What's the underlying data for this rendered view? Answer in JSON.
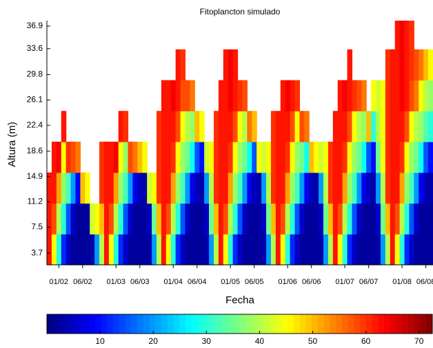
{
  "chart_data": {
    "type": "heatmap",
    "title": "Fitoplancton simulado",
    "xlabel": "Fecha",
    "ylabel": "Altura (m)",
    "categories": [
      null,
      null,
      "01/02",
      null,
      null,
      null,
      null,
      "06/02",
      null,
      null,
      null,
      null,
      null,
      null,
      "01/03",
      null,
      null,
      null,
      null,
      "06/03",
      null,
      null,
      null,
      null,
      null,
      null,
      "01/04",
      null,
      null,
      null,
      null,
      "06/04",
      null,
      null,
      null,
      null,
      null,
      null,
      "01/05",
      null,
      null,
      null,
      null,
      "06/05",
      null,
      null,
      null,
      null,
      null,
      null,
      "01/06",
      null,
      null,
      null,
      null,
      "06/06",
      null,
      null,
      null,
      null,
      null,
      null,
      "01/07",
      null,
      null,
      null,
      null,
      "06/07",
      null,
      null,
      null,
      null,
      null,
      null,
      "01/08",
      null,
      null,
      null,
      null,
      "06/08",
      null
    ],
    "ybins": [
      2,
      6.5,
      11,
      15.5,
      20,
      24.5,
      29,
      33.5,
      37.7
    ],
    "z": [
      [
        62,
        62,
        62
      ],
      [
        45,
        58,
        62,
        62
      ],
      [
        30,
        40,
        52,
        64
      ],
      [
        12,
        30,
        38,
        45,
        62
      ],
      [
        5,
        15,
        32,
        60
      ],
      [
        2,
        5,
        20,
        58
      ],
      [
        2,
        2,
        8,
        55
      ],
      [
        2,
        2,
        50
      ],
      [
        2,
        2,
        45
      ],
      [
        3,
        42
      ],
      [
        20,
        45
      ],
      [
        40,
        50,
        60,
        60
      ],
      [
        62,
        62,
        62,
        62
      ],
      [
        45,
        58,
        62,
        62
      ],
      [
        30,
        40,
        52,
        64
      ],
      [
        12,
        30,
        38,
        45,
        62
      ],
      [
        5,
        15,
        32,
        38,
        60
      ],
      [
        2,
        5,
        20,
        58
      ],
      [
        2,
        2,
        8,
        55
      ],
      [
        2,
        2,
        4,
        50
      ],
      [
        2,
        2,
        3,
        45
      ],
      [
        3,
        5,
        42
      ],
      [
        20,
        35,
        45
      ],
      [
        40,
        50,
        60,
        60,
        60
      ],
      [
        62,
        62,
        62,
        62,
        62,
        62
      ],
      [
        45,
        58,
        62,
        62,
        62,
        62
      ],
      [
        30,
        40,
        52,
        60,
        62,
        64
      ],
      [
        12,
        30,
        38,
        45,
        58,
        62,
        62
      ],
      [
        5,
        15,
        32,
        38,
        45,
        58,
        60
      ],
      [
        2,
        5,
        20,
        35,
        40,
        58
      ],
      [
        2,
        2,
        8,
        28,
        38,
        55
      ],
      [
        2,
        2,
        4,
        15,
        50
      ],
      [
        2,
        2,
        3,
        10,
        45
      ],
      [
        3,
        5,
        20,
        42
      ],
      [
        20,
        35,
        40,
        45
      ],
      [
        40,
        50,
        60,
        60,
        60
      ],
      [
        62,
        62,
        62,
        62,
        62,
        62
      ],
      [
        45,
        58,
        62,
        62,
        62,
        62,
        62
      ],
      [
        30,
        40,
        52,
        60,
        62,
        64,
        64
      ],
      [
        12,
        30,
        38,
        45,
        58,
        62,
        62
      ],
      [
        5,
        15,
        32,
        38,
        45,
        60
      ],
      [
        2,
        5,
        20,
        35,
        40,
        58
      ],
      [
        2,
        2,
        8,
        28,
        55
      ],
      [
        2,
        2,
        4,
        15,
        50
      ],
      [
        2,
        2,
        3,
        45
      ],
      [
        3,
        5,
        20,
        42
      ],
      [
        20,
        35,
        40,
        45
      ],
      [
        40,
        50,
        60,
        60,
        60
      ],
      [
        62,
        62,
        62,
        62,
        62
      ],
      [
        45,
        58,
        62,
        62,
        62,
        62
      ],
      [
        30,
        40,
        52,
        60,
        62,
        64
      ],
      [
        12,
        30,
        38,
        45,
        58,
        62
      ],
      [
        5,
        15,
        32,
        38,
        45,
        60
      ],
      [
        2,
        5,
        20,
        35,
        58
      ],
      [
        2,
        2,
        8,
        28,
        55
      ],
      [
        2,
        2,
        4,
        50
      ],
      [
        2,
        2,
        3,
        45
      ],
      [
        3,
        5,
        20,
        42
      ],
      [
        20,
        35,
        40,
        45
      ],
      [
        40,
        50,
        60,
        60
      ],
      [
        62,
        62,
        62,
        62,
        62
      ],
      [
        45,
        58,
        62,
        62,
        62,
        62
      ],
      [
        30,
        40,
        52,
        60,
        62,
        64
      ],
      [
        12,
        30,
        38,
        45,
        58,
        62,
        62
      ],
      [
        5,
        15,
        32,
        38,
        45,
        60
      ],
      [
        2,
        5,
        20,
        35,
        40,
        58
      ],
      [
        2,
        2,
        8,
        28,
        38,
        55
      ],
      [
        2,
        2,
        4,
        15,
        50
      ],
      [
        2,
        2,
        3,
        10,
        30,
        45
      ],
      [
        3,
        5,
        20,
        35,
        40,
        42
      ],
      [
        20,
        35,
        40,
        45,
        45,
        45
      ],
      [
        40,
        50,
        60,
        60,
        60,
        60,
        60
      ],
      [
        62,
        62,
        62,
        62,
        62,
        62,
        62
      ],
      [
        45,
        58,
        62,
        62,
        62,
        62,
        62,
        62
      ],
      [
        30,
        40,
        52,
        60,
        62,
        64,
        64,
        64
      ],
      [
        12,
        30,
        38,
        45,
        58,
        62,
        62,
        62
      ],
      [
        5,
        15,
        32,
        38,
        45,
        58,
        60,
        60
      ],
      [
        2,
        5,
        20,
        35,
        40,
        55,
        58
      ],
      [
        2,
        2,
        8,
        28,
        38,
        45,
        55
      ],
      [
        2,
        2,
        4,
        15,
        33,
        40,
        50
      ],
      [
        2,
        2,
        3,
        10,
        30,
        38,
        45
      ]
    ],
    "ylim": [
      2,
      37.7
    ],
    "yticks": [
      3.7,
      7.5,
      11.2,
      14.9,
      18.6,
      22.4,
      26.1,
      29.8,
      33.6,
      36.9
    ],
    "colormap": "jet",
    "clim": [
      0,
      72.5
    ],
    "cticks": [
      10,
      20,
      30,
      40,
      50,
      60,
      70
    ]
  }
}
